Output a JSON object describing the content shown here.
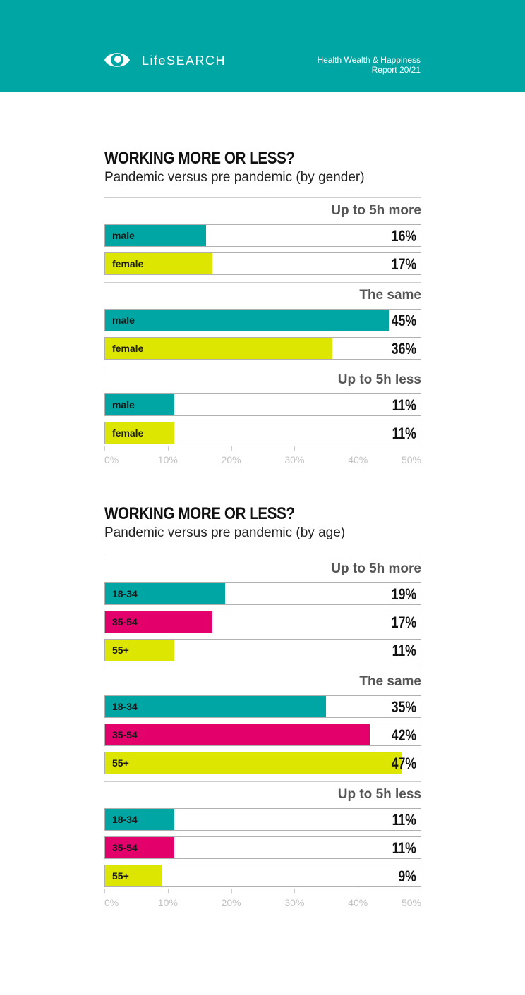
{
  "header": {
    "brand": "LifeSEARCH",
    "report_line1": "Health Wealth & Happiness",
    "report_line2": "Report 20/21",
    "background_color": "#00a6a3",
    "logo_icon": "eye-logo-icon"
  },
  "colors": {
    "teal": "#00a6a3",
    "lime": "#dde600",
    "magenta": "#e4006a"
  },
  "chart_data": [
    {
      "type": "bar",
      "title": "WORKING MORE OR LESS?",
      "subtitle": "Pandemic versus pre pandemic (by gender)",
      "xlim": [
        0,
        50
      ],
      "ticks": [
        "0%",
        "10%",
        "20%",
        "30%",
        "40%",
        "50%"
      ],
      "groups": [
        {
          "label": "Up to 5h more",
          "bars": [
            {
              "name": "male",
              "value": 16,
              "value_label": "16%",
              "color": "#00a6a3"
            },
            {
              "name": "female",
              "value": 17,
              "value_label": "17%",
              "color": "#dde600"
            }
          ]
        },
        {
          "label": "The same",
          "bars": [
            {
              "name": "male",
              "value": 45,
              "value_label": "45%",
              "color": "#00a6a3"
            },
            {
              "name": "female",
              "value": 36,
              "value_label": "36%",
              "color": "#dde600"
            }
          ]
        },
        {
          "label": "Up to 5h less",
          "bars": [
            {
              "name": "male",
              "value": 11,
              "value_label": "11%",
              "color": "#00a6a3"
            },
            {
              "name": "female",
              "value": 11,
              "value_label": "11%",
              "color": "#dde600"
            }
          ]
        }
      ]
    },
    {
      "type": "bar",
      "title": "WORKING MORE OR LESS?",
      "subtitle": "Pandemic versus pre pandemic (by age)",
      "xlim": [
        0,
        50
      ],
      "ticks": [
        "0%",
        "10%",
        "20%",
        "30%",
        "40%",
        "50%"
      ],
      "groups": [
        {
          "label": "Up to 5h more",
          "bars": [
            {
              "name": "18-34",
              "value": 19,
              "value_label": "19%",
              "color": "#00a6a3"
            },
            {
              "name": "35-54",
              "value": 17,
              "value_label": "17%",
              "color": "#e4006a"
            },
            {
              "name": "55+",
              "value": 11,
              "value_label": "11%",
              "color": "#dde600"
            }
          ]
        },
        {
          "label": "The same",
          "bars": [
            {
              "name": "18-34",
              "value": 35,
              "value_label": "35%",
              "color": "#00a6a3"
            },
            {
              "name": "35-54",
              "value": 42,
              "value_label": "42%",
              "color": "#e4006a"
            },
            {
              "name": "55+",
              "value": 47,
              "value_label": "47%",
              "color": "#dde600"
            }
          ]
        },
        {
          "label": "Up to 5h less",
          "bars": [
            {
              "name": "18-34",
              "value": 11,
              "value_label": "11%",
              "color": "#00a6a3"
            },
            {
              "name": "35-54",
              "value": 11,
              "value_label": "11%",
              "color": "#e4006a"
            },
            {
              "name": "55+",
              "value": 9,
              "value_label": "9%",
              "color": "#dde600"
            }
          ]
        }
      ]
    }
  ]
}
